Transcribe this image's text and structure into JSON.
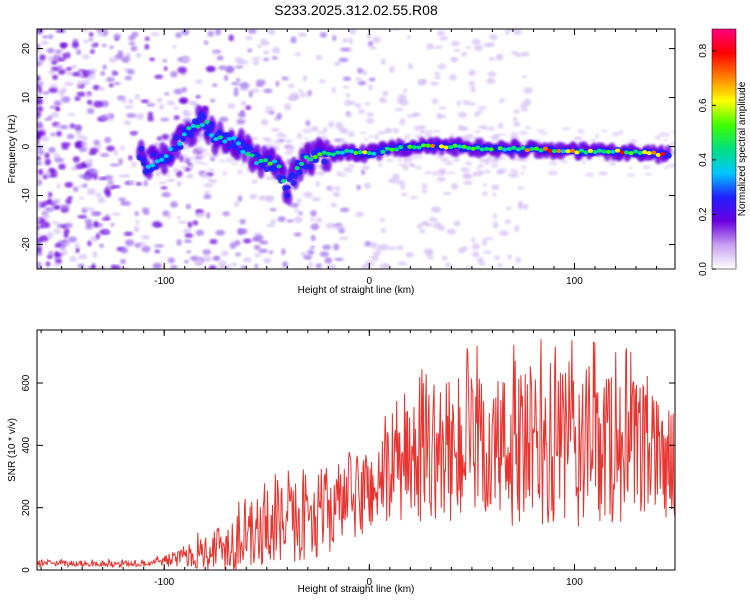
{
  "title": "S233.2025.312.02.55.R08",
  "colors": {
    "snr_line": "#e8332f",
    "axes": "#000000",
    "background": "#ffffff"
  },
  "chart_data": [
    {
      "type": "heatmap",
      "name": "spectrogram",
      "xlabel": "Height of straight line (km)",
      "ylabel": "Frequency (Hz)",
      "xlim": [
        -162,
        149
      ],
      "ylim": [
        -25,
        24
      ],
      "xticks": [
        -100,
        0,
        100
      ],
      "xtick_labels": [
        "-100",
        "0",
        "100"
      ],
      "yticks": [
        -20,
        -10,
        0,
        10,
        20
      ],
      "ytick_labels": [
        "-20",
        "-10",
        "0",
        "10",
        "20"
      ],
      "ridge": [
        {
          "x": -110,
          "y": -4
        },
        {
          "x": -100,
          "y": -2
        },
        {
          "x": -90,
          "y": 2
        },
        {
          "x": -82,
          "y": 5.5
        },
        {
          "x": -75,
          "y": 2
        },
        {
          "x": -65,
          "y": 1
        },
        {
          "x": -55,
          "y": -2.5
        },
        {
          "x": -45,
          "y": -4
        },
        {
          "x": -40,
          "y": -9
        },
        {
          "x": -35,
          "y": -4
        },
        {
          "x": -25,
          "y": -2
        },
        {
          "x": -10,
          "y": -1
        },
        {
          "x": 0,
          "y": -1.5
        },
        {
          "x": 10,
          "y": -0.5
        },
        {
          "x": 20,
          "y": 0
        },
        {
          "x": 40,
          "y": 0
        },
        {
          "x": 60,
          "y": -0.5
        },
        {
          "x": 80,
          "y": -0.5
        },
        {
          "x": 100,
          "y": -1
        },
        {
          "x": 120,
          "y": -1
        },
        {
          "x": 140,
          "y": -1.5
        }
      ],
      "colorbar": {
        "label": "Normalized spectral amplitude",
        "range": [
          0,
          0.88
        ],
        "ticks": [
          0,
          0.2,
          0.4,
          0.6,
          0.8
        ],
        "tick_labels": [
          "0.0",
          "0.2",
          "0.4",
          "0.6",
          "0.8"
        ],
        "colormap": [
          "#ffffff",
          "#c8a0f0",
          "#6a00e0",
          "#2020ff",
          "#00c8ff",
          "#00e080",
          "#40ff00",
          "#ffff00",
          "#ff8000",
          "#ff0000",
          "#ff0080"
        ]
      }
    },
    {
      "type": "line",
      "name": "snr",
      "xlabel": "Height of straight line (km)",
      "ylabel": "SNR (10 * v/v)",
      "xlim": [
        -162,
        149
      ],
      "ylim": [
        0,
        770
      ],
      "xticks": [
        -100,
        0,
        100
      ],
      "xtick_labels": [
        "-100",
        "0",
        "100"
      ],
      "yticks": [
        0,
        200,
        400,
        600
      ],
      "ytick_labels": [
        "0",
        "200",
        "400",
        "600"
      ],
      "envelope": [
        {
          "x": -162,
          "mean": 20,
          "amp": 10
        },
        {
          "x": -110,
          "mean": 20,
          "amp": 10
        },
        {
          "x": -90,
          "mean": 40,
          "amp": 30
        },
        {
          "x": -70,
          "mean": 80,
          "amp": 90
        },
        {
          "x": -50,
          "mean": 130,
          "amp": 120
        },
        {
          "x": -30,
          "mean": 170,
          "amp": 140
        },
        {
          "x": -10,
          "mean": 220,
          "amp": 140
        },
        {
          "x": 10,
          "mean": 300,
          "amp": 160
        },
        {
          "x": 30,
          "mean": 380,
          "amp": 220
        },
        {
          "x": 60,
          "mean": 380,
          "amp": 250
        },
        {
          "x": 90,
          "mean": 390,
          "amp": 280
        },
        {
          "x": 120,
          "mean": 400,
          "amp": 260
        },
        {
          "x": 149,
          "mean": 340,
          "amp": 170
        }
      ]
    }
  ]
}
